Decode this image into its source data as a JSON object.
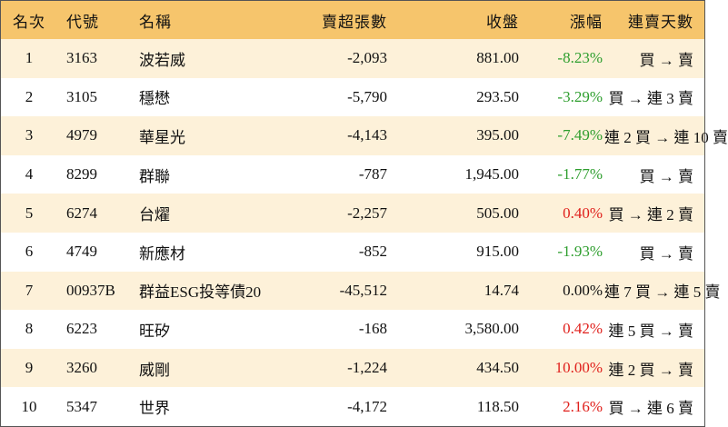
{
  "table": {
    "header": [
      "名次",
      "代號",
      "名稱",
      "賣超張數",
      "收盤",
      "漲幅",
      "連賣天數"
    ],
    "rows": [
      [
        "1",
        "3163",
        "波若威",
        "-2,093",
        "881.00",
        "-8.23%",
        "買 → 賣"
      ],
      [
        "2",
        "3105",
        "穩懋",
        "-5,790",
        "293.50",
        "-3.29%",
        "買 → 連 3 賣"
      ],
      [
        "3",
        "4979",
        "華星光",
        "-4,143",
        "395.00",
        "-7.49%",
        "連 2 買 → 連 10 賣"
      ],
      [
        "4",
        "8299",
        "群聯",
        "-787",
        "1,945.00",
        "-1.77%",
        "買 → 賣"
      ],
      [
        "5",
        "6274",
        "台燿",
        "-2,257",
        "505.00",
        "0.40%",
        "買 → 連 2 賣"
      ],
      [
        "6",
        "4749",
        "新應材",
        "-852",
        "915.00",
        "-1.93%",
        "買 → 賣"
      ],
      [
        "7",
        "00937B",
        "群益ESG投等債20",
        "-45,512",
        "14.74",
        "0.00%",
        "連 7 買 → 連 5 賣"
      ],
      [
        "8",
        "6223",
        "旺矽",
        "-168",
        "3,580.00",
        "0.42%",
        "連 5 買 → 賣"
      ],
      [
        "9",
        "3260",
        "威剛",
        "-1,224",
        "434.50",
        "10.00%",
        "連 2 買 → 賣"
      ],
      [
        "10",
        "5347",
        "世界",
        "-4,172",
        "118.50",
        "2.16%",
        "買 → 連 6 賣"
      ]
    ],
    "change_colors": [
      "#2e9e2e",
      "#2e9e2e",
      "#2e9e2e",
      "#2e9e2e",
      "#e0201c",
      "#2e9e2e",
      "#111111",
      "#e0201c",
      "#e0201c",
      "#e0201c"
    ],
    "header_color": "#f6c56c",
    "stripe_color": "#fdf1d9"
  }
}
